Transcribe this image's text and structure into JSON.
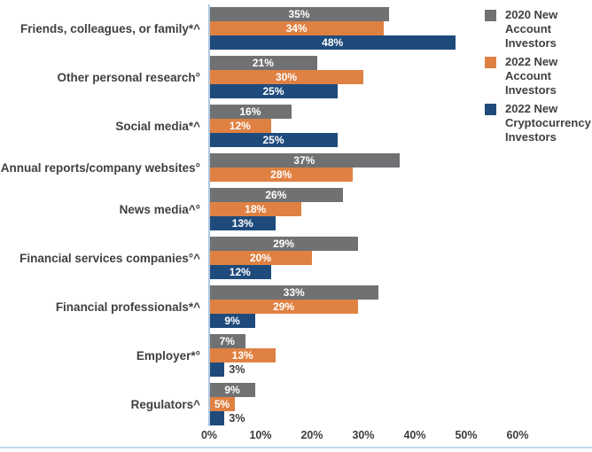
{
  "chart_data": {
    "type": "bar",
    "orientation": "horizontal",
    "title": "",
    "categories": [
      "Friends, colleagues, or family*^",
      "Other personal research°",
      "Social media*^",
      "Annual reports/company websites°",
      "News media^°",
      "Financial services companies°^",
      "Financial professionals*^",
      "Employer*°",
      "Regulators^"
    ],
    "series": [
      {
        "name": "2020 New Account Investors",
        "color": "#6f7173",
        "values": [
          35,
          21,
          16,
          37,
          26,
          29,
          33,
          7,
          9
        ]
      },
      {
        "name": "2022 New Account Investors",
        "color": "#df8142",
        "values": [
          34,
          30,
          12,
          28,
          18,
          20,
          29,
          13,
          5
        ]
      },
      {
        "name": "2022 New Cryptocurrency Investors",
        "color": "#1f4b7c",
        "values": [
          48,
          25,
          25,
          null,
          13,
          12,
          9,
          3,
          3
        ]
      }
    ],
    "value_suffix": "%",
    "x_ticks": [
      "0%",
      "10%",
      "20%",
      "30%",
      "40%",
      "50%",
      "60%"
    ],
    "x_tick_values": [
      0,
      10,
      20,
      30,
      40,
      50,
      60
    ],
    "xlim": [
      0,
      60
    ],
    "grid": false,
    "legend_position": "top-right",
    "legend": [
      {
        "lines": [
          "2020 New",
          "Account",
          "Investors"
        ],
        "color": "#6f7173"
      },
      {
        "lines": [
          "2022 New",
          "Account",
          "Investors"
        ],
        "color": "#df8142"
      },
      {
        "lines": [
          "2022 New",
          "Cryptocurrency",
          "Investors"
        ],
        "color": "#1f4b7c"
      }
    ],
    "colors": {
      "axis_line": "#aec6de",
      "bottom_rule": "#bdd7ee",
      "label_text": "#3f4040",
      "value_inside_text": "#ffffff",
      "value_outside_text": "#3a3a3a"
    }
  }
}
